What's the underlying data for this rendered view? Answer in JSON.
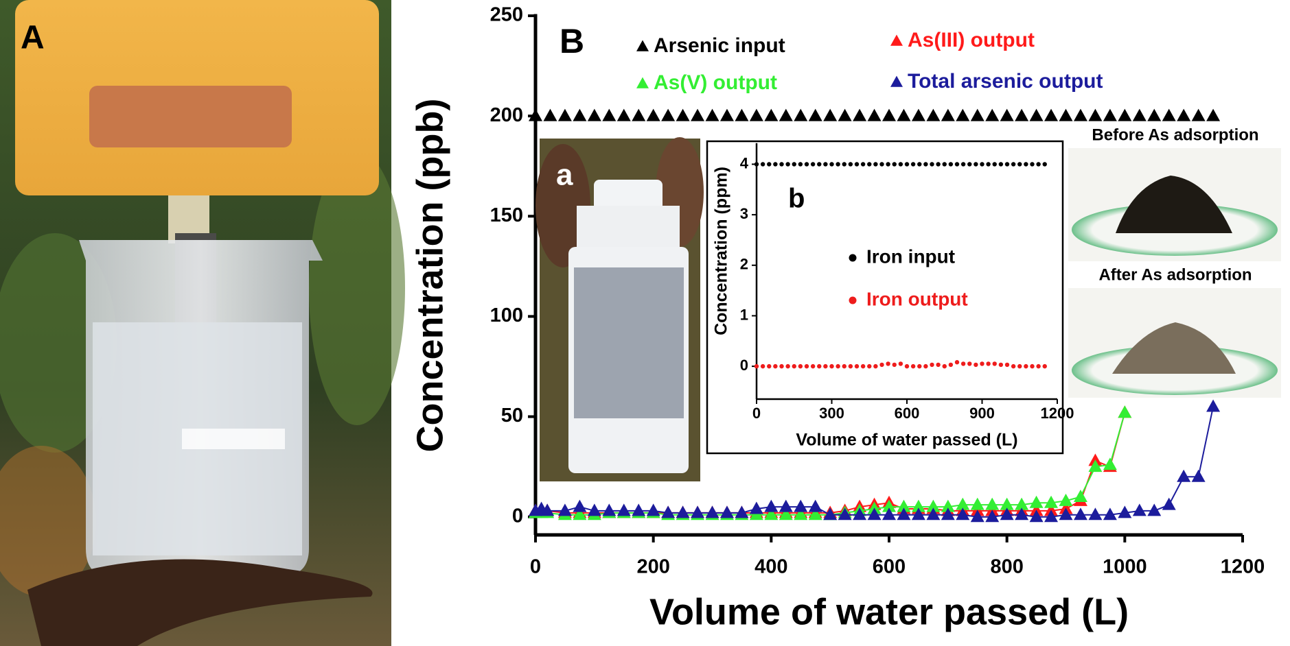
{
  "photo_labels": {
    "panel_a": "A",
    "inset_a": "a",
    "before": "Before As adsorption",
    "after": "After As adsorption"
  },
  "chart_data": [
    {
      "type": "scatter",
      "label": "B",
      "xlabel": "Volume of water passed (L)",
      "ylabel": "Concentration (ppb)",
      "xlim": [
        0,
        1200
      ],
      "xticks": [
        0,
        200,
        400,
        600,
        800,
        1000,
        1200
      ],
      "ylim": [
        -9,
        250
      ],
      "yticks": [
        0,
        50,
        100,
        150,
        200,
        250
      ],
      "series": [
        {
          "name": "Arsenic input",
          "color": "#000000",
          "marker": "triangle",
          "line": false,
          "x": [
            0,
            25,
            50,
            75,
            100,
            125,
            150,
            175,
            200,
            225,
            250,
            275,
            300,
            325,
            350,
            375,
            400,
            425,
            450,
            475,
            500,
            525,
            550,
            575,
            600,
            625,
            650,
            675,
            700,
            725,
            750,
            775,
            800,
            825,
            850,
            875,
            900,
            925,
            950,
            975,
            1000,
            1025,
            1050,
            1075,
            1100,
            1125,
            1150
          ],
          "values": [
            200,
            200,
            200,
            200,
            200,
            200,
            200,
            200,
            200,
            200,
            200,
            200,
            200,
            200,
            200,
            200,
            200,
            200,
            200,
            200,
            200,
            200,
            200,
            200,
            200,
            200,
            200,
            200,
            200,
            200,
            200,
            200,
            200,
            200,
            200,
            200,
            200,
            200,
            200,
            200,
            200,
            200,
            200,
            200,
            200,
            200,
            200
          ]
        },
        {
          "name": "As(III) output",
          "color": "#ff1a1a",
          "marker": "triangle",
          "line": true,
          "x": [
            0,
            10,
            20,
            50,
            75,
            100,
            125,
            150,
            175,
            200,
            225,
            250,
            275,
            300,
            325,
            350,
            375,
            400,
            425,
            450,
            475,
            500,
            525,
            550,
            575,
            600,
            625,
            650,
            675,
            700,
            725,
            750,
            775,
            800,
            825,
            850,
            875,
            900,
            925,
            950,
            975,
            1000
          ],
          "values": [
            3,
            3,
            3,
            2,
            2,
            2,
            2,
            2,
            2,
            2,
            2,
            2,
            2,
            2,
            2,
            2,
            2,
            2,
            2,
            2,
            2,
            2,
            3,
            5,
            6,
            7,
            4,
            4,
            4,
            3,
            3,
            3,
            3,
            3,
            3,
            3,
            3,
            4,
            8,
            28,
            25,
            52
          ]
        },
        {
          "name": "As(V) output",
          "color": "#33ee33",
          "marker": "triangle",
          "line": true,
          "x": [
            0,
            10,
            20,
            50,
            75,
            100,
            125,
            150,
            175,
            200,
            225,
            250,
            275,
            300,
            325,
            350,
            375,
            400,
            425,
            450,
            475,
            500,
            525,
            550,
            575,
            600,
            625,
            650,
            675,
            700,
            725,
            750,
            775,
            800,
            825,
            850,
            875,
            900,
            925,
            950,
            975,
            1000
          ],
          "values": [
            2,
            2,
            2,
            1,
            1,
            1,
            2,
            2,
            2,
            2,
            1,
            1,
            1,
            1,
            1,
            1,
            1,
            1,
            1,
            1,
            1,
            1,
            2,
            3,
            4,
            5,
            5,
            5,
            5,
            5,
            6,
            6,
            6,
            6,
            6,
            7,
            7,
            8,
            10,
            25,
            26,
            52
          ]
        },
        {
          "name": "Total arsenic output",
          "color": "#1c1c9c",
          "marker": "triangle",
          "line": true,
          "x": [
            0,
            10,
            20,
            50,
            75,
            100,
            125,
            150,
            175,
            200,
            225,
            250,
            275,
            300,
            325,
            350,
            375,
            400,
            425,
            450,
            475,
            500,
            525,
            550,
            575,
            600,
            625,
            650,
            675,
            700,
            725,
            750,
            775,
            800,
            825,
            850,
            875,
            900,
            925,
            950,
            975,
            1000,
            1025,
            1050,
            1075,
            1100,
            1125,
            1150
          ],
          "values": [
            3,
            4,
            3,
            3,
            5,
            3,
            3,
            3,
            3,
            3,
            2,
            2,
            2,
            2,
            2,
            2,
            4,
            5,
            5,
            5,
            5,
            1,
            1,
            1,
            1,
            1,
            1,
            1,
            1,
            1,
            1,
            0,
            0,
            1,
            1,
            0,
            0,
            1,
            1,
            1,
            1,
            2,
            3,
            3,
            6,
            20,
            20,
            55
          ]
        }
      ]
    },
    {
      "type": "scatter",
      "label": "b",
      "xlabel": "Volume of water passed (L)",
      "ylabel": "Concentration (ppm)",
      "xlim": [
        0,
        1200
      ],
      "xticks": [
        0,
        300,
        600,
        900,
        1200
      ],
      "ylim": [
        -0.65,
        4.4
      ],
      "yticks": [
        0,
        1,
        2,
        3,
        4
      ],
      "series": [
        {
          "name": "Iron input",
          "color": "#000000",
          "marker": "circle",
          "line": false,
          "x": [
            0,
            25,
            50,
            75,
            100,
            125,
            150,
            175,
            200,
            225,
            250,
            275,
            300,
            325,
            350,
            375,
            400,
            425,
            450,
            475,
            500,
            525,
            550,
            575,
            600,
            625,
            650,
            675,
            700,
            725,
            750,
            775,
            800,
            825,
            850,
            875,
            900,
            925,
            950,
            975,
            1000,
            1025,
            1050,
            1075,
            1100,
            1125,
            1150
          ],
          "values": [
            4,
            4,
            4,
            4,
            4,
            4,
            4,
            4,
            4,
            4,
            4,
            4,
            4,
            4,
            4,
            4,
            4,
            4,
            4,
            4,
            4,
            4,
            4,
            4,
            4,
            4,
            4,
            4,
            4,
            4,
            4,
            4,
            4,
            4,
            4,
            4,
            4,
            4,
            4,
            4,
            4,
            4,
            4,
            4,
            4,
            4,
            4
          ]
        },
        {
          "name": "Iron output",
          "color": "#ee1c1c",
          "marker": "circle",
          "line": false,
          "x": [
            0,
            25,
            50,
            75,
            100,
            125,
            150,
            175,
            200,
            225,
            250,
            275,
            300,
            325,
            350,
            375,
            400,
            425,
            450,
            475,
            500,
            525,
            550,
            575,
            600,
            625,
            650,
            675,
            700,
            725,
            750,
            775,
            800,
            825,
            850,
            875,
            900,
            925,
            950,
            975,
            1000,
            1025,
            1050,
            1075,
            1100,
            1125,
            1150
          ],
          "values": [
            0,
            0,
            0,
            0,
            0,
            0,
            0,
            0,
            0,
            0,
            0,
            0,
            0,
            0,
            0,
            0,
            0,
            0,
            0,
            0,
            0.03,
            0.05,
            0.03,
            0.05,
            0,
            0,
            0,
            0,
            0.03,
            0.03,
            0,
            0.03,
            0.08,
            0.05,
            0.05,
            0.03,
            0.05,
            0.05,
            0.05,
            0.03,
            0.03,
            0,
            0,
            0,
            0,
            0,
            0
          ]
        }
      ]
    }
  ]
}
